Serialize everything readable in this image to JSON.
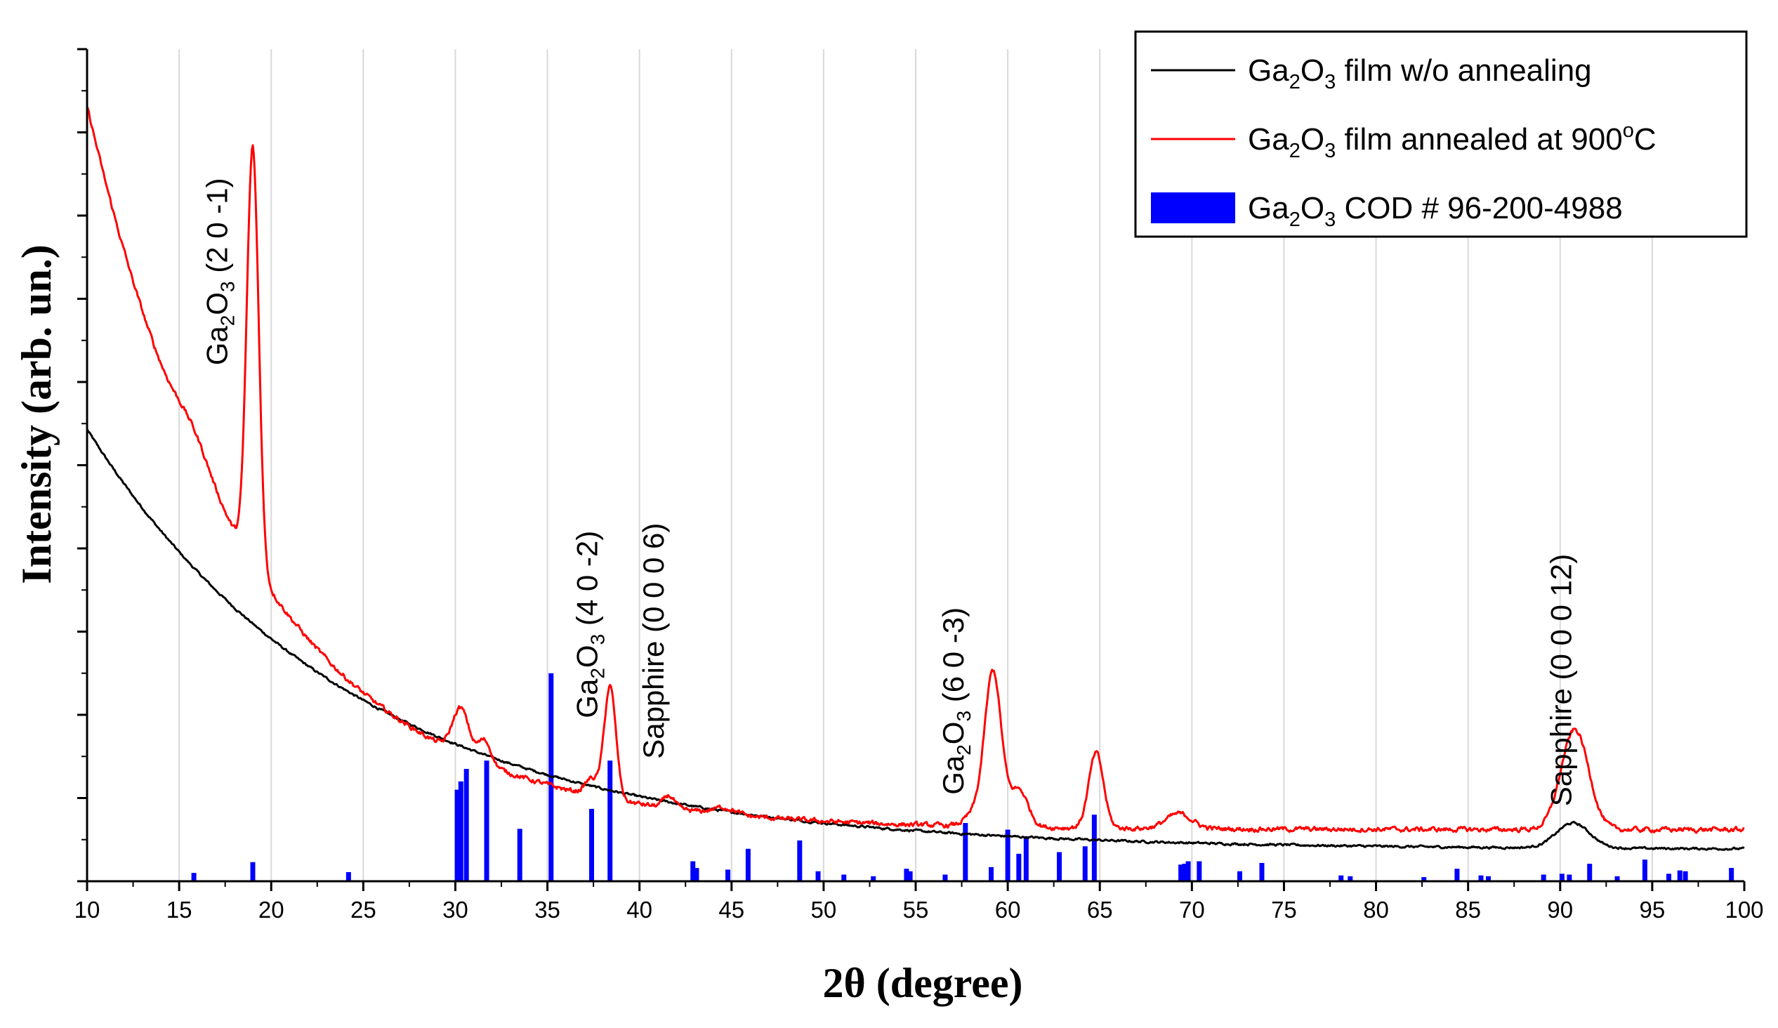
{
  "chart_data": {
    "type": "line",
    "xlabel": "2θ (degree)",
    "ylabel": "Intensity (arb. un.)",
    "xlim": [
      10,
      100
    ],
    "ylim": [
      0,
      100
    ],
    "x_ticks": [
      10,
      15,
      20,
      25,
      30,
      35,
      40,
      45,
      50,
      55,
      60,
      65,
      70,
      75,
      80,
      85,
      90,
      95,
      100
    ],
    "y_tick_count": 10,
    "grid": "vertical",
    "legend_position": "top-right",
    "legend": [
      {
        "base": "Ga",
        "sub1": "2",
        "mid": "O",
        "sub2": "3",
        "rest": " film w/o annealing",
        "sup": "",
        "tail": "",
        "kind": "line",
        "color": "#000000"
      },
      {
        "base": "Ga",
        "sub1": "2",
        "mid": "O",
        "sub2": "3",
        "rest": " film annealed at 900",
        "sup": "o",
        "tail": "C",
        "kind": "line",
        "color": "#ff0000"
      },
      {
        "base": "Ga",
        "sub1": "2",
        "mid": "O",
        "sub2": "3",
        "rest": " COD # 96-200-4988",
        "sup": "",
        "tail": "",
        "kind": "bar",
        "color": "#0000ff"
      }
    ],
    "annotations": [
      {
        "text_parts": [
          "Ga",
          "2",
          "O",
          "3",
          " (2 0 -1)"
        ],
        "x": 17.6,
        "y": 62.0
      },
      {
        "text_parts": [
          "Ga",
          "2",
          "O",
          "3",
          " (4 0 -2)"
        ],
        "x": 37.7,
        "y": 19.6
      },
      {
        "text": "Sapphire (0 0 0 6)",
        "x": 41.3,
        "y": 14.7
      },
      {
        "text_parts": [
          "Ga",
          "2",
          "O",
          "3",
          " (6 0 -3)"
        ],
        "x": 57.6,
        "y": 10.4
      },
      {
        "text": "Sapphire (0 0 0 12)",
        "x": 90.6,
        "y": 9.0
      }
    ],
    "series": [
      {
        "name": "Ga2O3 film w/o annealing",
        "color": "#000000",
        "model": "baseline",
        "params": {
          "a": 3.8,
          "b": 50.5,
          "tau": 14.5,
          "peak_x": 90.7,
          "peak_h": 3.0,
          "peak_w": 0.9
        },
        "noise": 0.25
      },
      {
        "name": "Ga2O3 film annealed at 900°C",
        "color": "#ff0000",
        "model": "baseline_peaks",
        "params": {
          "a": 6.2,
          "b": 87.0,
          "tau": 9.0
        },
        "peaks": [
          {
            "x": 19.0,
            "h": 50.0,
            "w": 0.32
          },
          {
            "x": 30.3,
            "h": 5.5,
            "w": 0.45
          },
          {
            "x": 31.6,
            "h": 2.8,
            "w": 0.35
          },
          {
            "x": 37.4,
            "h": 2.0,
            "w": 0.35
          },
          {
            "x": 38.4,
            "h": 13.5,
            "w": 0.32
          },
          {
            "x": 41.6,
            "h": 1.5,
            "w": 0.3
          },
          {
            "x": 44.6,
            "h": 0.8,
            "w": 0.6
          },
          {
            "x": 58.2,
            "h": 1.5,
            "w": 0.5
          },
          {
            "x": 59.2,
            "h": 18.5,
            "w": 0.45
          },
          {
            "x": 60.6,
            "h": 4.5,
            "w": 0.5
          },
          {
            "x": 64.8,
            "h": 9.0,
            "w": 0.4
          },
          {
            "x": 69.3,
            "h": 1.8,
            "w": 0.7
          },
          {
            "x": 90.8,
            "h": 12.0,
            "w": 0.75
          }
        ],
        "noise": 0.55
      }
    ],
    "reference_bars": {
      "name": "Ga2O3 COD # 96-200-4988",
      "color": "#0000ff",
      "x": [
        15.8,
        19.0,
        24.2,
        30.1,
        30.3,
        30.6,
        31.7,
        33.5,
        35.2,
        37.4,
        38.4,
        42.9,
        43.1,
        44.8,
        45.9,
        48.7,
        49.7,
        51.1,
        52.7,
        54.5,
        54.7,
        56.6,
        57.7,
        59.1,
        60.0,
        60.6,
        61.0,
        62.8,
        64.2,
        64.7,
        69.4,
        69.6,
        69.8,
        70.4,
        72.6,
        73.8,
        78.1,
        78.6,
        82.6,
        84.4,
        85.7,
        86.1,
        89.1,
        90.1,
        90.5,
        91.6,
        93.1,
        94.6,
        95.9,
        96.5,
        96.8,
        99.3
      ],
      "values": [
        1.0,
        2.3,
        1.1,
        11.0,
        12.0,
        13.5,
        14.5,
        6.3,
        25.0,
        8.7,
        14.5,
        2.4,
        1.6,
        1.4,
        3.9,
        4.9,
        1.2,
        0.8,
        0.6,
        1.5,
        1.2,
        0.8,
        7.0,
        1.7,
        6.2,
        3.3,
        5.4,
        3.5,
        4.2,
        8.0,
        2.0,
        2.1,
        2.4,
        2.4,
        1.2,
        2.2,
        0.7,
        0.6,
        0.5,
        1.5,
        0.7,
        0.6,
        0.8,
        0.9,
        0.8,
        2.1,
        0.6,
        2.6,
        0.9,
        1.3,
        1.2,
        1.6
      ]
    }
  }
}
